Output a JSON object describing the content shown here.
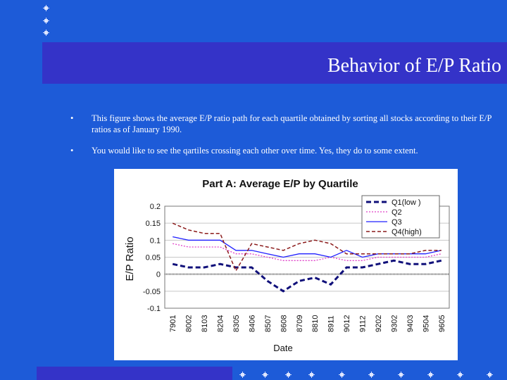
{
  "slide": {
    "title": "Behavior of E/P Ratio",
    "bullets": [
      "This figure shows the average E/P ratio path for each quartile obtained by sorting all stocks according to their E/P ratios as of January 1990.",
      "You would like to see the qartiles crossing each other over time. Yes, they do to some extent."
    ],
    "bullet_symbol": "•"
  },
  "chart_data": {
    "type": "line",
    "title": "Part A: Average E/P by Quartile",
    "xlabel": "Date",
    "ylabel": "E/P Ratio",
    "ylim": [
      -0.1,
      0.2
    ],
    "yticks": [
      0.2,
      0.15,
      0.1,
      0.05,
      0,
      -0.05,
      -0.1
    ],
    "ytick_labels": [
      "0.2",
      "0.15",
      "0.1",
      "0.05",
      "0",
      "-0.05",
      "-0.1"
    ],
    "xticks": [
      "7901",
      "8002",
      "8103",
      "8204",
      "8305",
      "8406",
      "8507",
      "8608",
      "8709",
      "8810",
      "8911",
      "9012",
      "9112",
      "9202",
      "9302",
      "9403",
      "9504",
      "9605"
    ],
    "legend_position": "top-right",
    "series": [
      {
        "name": "Q1(low )",
        "color": "#10107a",
        "style": "dash-thick",
        "x": [
          0,
          1,
          2,
          3,
          4,
          5,
          6,
          7,
          8,
          9,
          10,
          11,
          12,
          13,
          14,
          15,
          16,
          17
        ],
        "values": [
          0.03,
          0.02,
          0.02,
          0.03,
          0.02,
          0.02,
          -0.02,
          -0.05,
          -0.02,
          -0.01,
          -0.03,
          0.02,
          0.02,
          0.03,
          0.04,
          0.03,
          0.03,
          0.04
        ]
      },
      {
        "name": "Q2",
        "color": "#e040c8",
        "style": "dotted",
        "x": [
          0,
          1,
          2,
          3,
          4,
          5,
          6,
          7,
          8,
          9,
          10,
          11,
          12,
          13,
          14,
          15,
          16,
          17
        ],
        "values": [
          0.09,
          0.08,
          0.08,
          0.08,
          0.06,
          0.06,
          0.05,
          0.04,
          0.04,
          0.04,
          0.05,
          0.04,
          0.04,
          0.05,
          0.05,
          0.05,
          0.05,
          0.06
        ]
      },
      {
        "name": "Q3",
        "color": "#2020ff",
        "style": "solid",
        "x": [
          0,
          1,
          2,
          3,
          4,
          5,
          6,
          7,
          8,
          9,
          10,
          11,
          12,
          13,
          14,
          15,
          16,
          17
        ],
        "values": [
          0.11,
          0.1,
          0.1,
          0.1,
          0.07,
          0.07,
          0.06,
          0.05,
          0.06,
          0.06,
          0.05,
          0.07,
          0.05,
          0.06,
          0.06,
          0.06,
          0.06,
          0.07
        ]
      },
      {
        "name": "Q4(high)",
        "color": "#8b1a1a",
        "style": "dashed",
        "x": [
          0,
          1,
          2,
          3,
          4,
          5,
          6,
          7,
          8,
          9,
          10,
          11,
          12,
          13,
          14,
          15,
          16,
          17
        ],
        "values": [
          0.15,
          0.13,
          0.12,
          0.12,
          0.01,
          0.09,
          0.08,
          0.07,
          0.09,
          0.1,
          0.09,
          0.06,
          0.06,
          0.06,
          0.06,
          0.06,
          0.07,
          0.07
        ]
      }
    ]
  }
}
